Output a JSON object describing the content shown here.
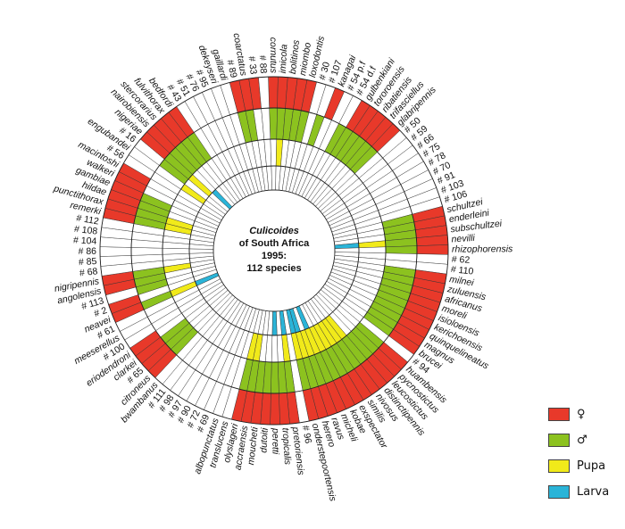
{
  "chart_data": {
    "type": "radial-matrix",
    "title_lines": [
      "Culicoides",
      "of South Africa",
      "1995:",
      "112 species"
    ],
    "rings": [
      "female",
      "male",
      "pupa",
      "larva"
    ],
    "colors": {
      "female": "#e8392a",
      "male": "#8cc21f",
      "pupa": "#f1ea1a",
      "larva": "#2ab4d8"
    },
    "legend": [
      {
        "key": "female",
        "label": "♀"
      },
      {
        "key": "male",
        "label": "♂"
      },
      {
        "key": "pupa",
        "label": "Pupa"
      },
      {
        "key": "larva",
        "label": "Larva"
      }
    ],
    "species": [
      {
        "name": "cornutus",
        "f": 1,
        "m": 1,
        "p": 0,
        "l": 0
      },
      {
        "name": "imicola",
        "f": 1,
        "m": 1,
        "p": 1,
        "l": 0
      },
      {
        "name": "bolitinos",
        "f": 1,
        "m": 1,
        "p": 0,
        "l": 0
      },
      {
        "name": "miombo",
        "f": 1,
        "m": 1,
        "p": 0,
        "l": 0
      },
      {
        "name": "loxodontis",
        "f": 1,
        "m": 1,
        "p": 0,
        "l": 0
      },
      {
        "name": "# 30",
        "f": 0,
        "m": 0,
        "p": 0,
        "l": 0
      },
      {
        "name": "# 107",
        "f": 0,
        "m": 1,
        "p": 0,
        "l": 0
      },
      {
        "name": "kanagai",
        "f": 1,
        "m": 0,
        "p": 0,
        "l": 0
      },
      {
        "name": "# 54 p.f",
        "f": 0,
        "m": 0,
        "p": 0,
        "l": 0
      },
      {
        "name": "# 54 d.f",
        "f": 0,
        "m": 1,
        "p": 0,
        "l": 0
      },
      {
        "name": "gulbenkiani",
        "f": 1,
        "m": 1,
        "p": 0,
        "l": 0
      },
      {
        "name": "tororoensis",
        "f": 1,
        "m": 1,
        "p": 0,
        "l": 0
      },
      {
        "name": "ribatiensis",
        "f": 1,
        "m": 1,
        "p": 0,
        "l": 0
      },
      {
        "name": "trifasciellus",
        "f": 1,
        "m": 1,
        "p": 0,
        "l": 0
      },
      {
        "name": "glabripennis",
        "f": 1,
        "m": 1,
        "p": 0,
        "l": 0
      },
      {
        "name": "# 50",
        "f": 0,
        "m": 0,
        "p": 0,
        "l": 0
      },
      {
        "name": "# 59",
        "f": 0,
        "m": 0,
        "p": 0,
        "l": 0
      },
      {
        "name": "# 66",
        "f": 0,
        "m": 0,
        "p": 0,
        "l": 0
      },
      {
        "name": "# 75",
        "f": 0,
        "m": 0,
        "p": 0,
        "l": 0
      },
      {
        "name": "# 78",
        "f": 0,
        "m": 0,
        "p": 0,
        "l": 0
      },
      {
        "name": "# 70",
        "f": 0,
        "m": 0,
        "p": 0,
        "l": 0
      },
      {
        "name": "# 91",
        "f": 0,
        "m": 0,
        "p": 0,
        "l": 0
      },
      {
        "name": "# 103",
        "f": 0,
        "m": 0,
        "p": 0,
        "l": 0
      },
      {
        "name": "# 106",
        "f": 0,
        "m": 0,
        "p": 0,
        "l": 0
      },
      {
        "name": "schultzei",
        "f": 1,
        "m": 1,
        "p": 0,
        "l": 0
      },
      {
        "name": "enderleini",
        "f": 1,
        "m": 1,
        "p": 0,
        "l": 0
      },
      {
        "name": "subschultzei",
        "f": 1,
        "m": 1,
        "p": 0,
        "l": 0
      },
      {
        "name": "nevilli",
        "f": 1,
        "m": 1,
        "p": 1,
        "l": 1
      },
      {
        "name": "rhizophorensis",
        "f": 1,
        "m": 1,
        "p": 0,
        "l": 0
      },
      {
        "name": "# 62",
        "f": 0,
        "m": 0,
        "p": 0,
        "l": 0
      },
      {
        "name": "# 110",
        "f": 0,
        "m": 0,
        "p": 0,
        "l": 0
      },
      {
        "name": "milnei",
        "f": 1,
        "m": 1,
        "p": 0,
        "l": 0
      },
      {
        "name": "zuluensis",
        "f": 1,
        "m": 1,
        "p": 0,
        "l": 0
      },
      {
        "name": "africanus",
        "f": 1,
        "m": 1,
        "p": 0,
        "l": 0
      },
      {
        "name": "moreli",
        "f": 1,
        "m": 1,
        "p": 0,
        "l": 0
      },
      {
        "name": "isioloensis",
        "f": 1,
        "m": 1,
        "p": 0,
        "l": 0
      },
      {
        "name": "kerichoensis",
        "f": 1,
        "m": 1,
        "p": 0,
        "l": 0
      },
      {
        "name": "quinquelineatus",
        "f": 1,
        "m": 1,
        "p": 0,
        "l": 0
      },
      {
        "name": "magnus",
        "f": 1,
        "m": 1,
        "p": 0,
        "l": 0
      },
      {
        "name": "brucei",
        "f": 1,
        "m": 1,
        "p": 0,
        "l": 0
      },
      {
        "name": "# 94",
        "f": 0,
        "m": 0,
        "p": 0,
        "l": 0
      },
      {
        "name": "huambensis",
        "f": 1,
        "m": 1,
        "p": 0,
        "l": 0
      },
      {
        "name": "pycnostictus",
        "f": 1,
        "m": 1,
        "p": 0,
        "l": 0
      },
      {
        "name": "leucostictus",
        "f": 1,
        "m": 1,
        "p": 0,
        "l": 0
      },
      {
        "name": "distinctipennis",
        "f": 1,
        "m": 1,
        "p": 1,
        "l": 0
      },
      {
        "name": "nivosus",
        "f": 1,
        "m": 1,
        "p": 1,
        "l": 0
      },
      {
        "name": "similis",
        "f": 1,
        "m": 1,
        "p": 1,
        "l": 0
      },
      {
        "name": "exspectator",
        "f": 1,
        "m": 1,
        "p": 1,
        "l": 0
      },
      {
        "name": "kobae",
        "f": 1,
        "m": 1,
        "p": 1,
        "l": 0
      },
      {
        "name": "micheli",
        "f": 1,
        "m": 1,
        "p": 1,
        "l": 1
      },
      {
        "name": "ravus",
        "f": 1,
        "m": 1,
        "p": 1,
        "l": 0
      },
      {
        "name": "herero",
        "f": 1,
        "m": 1,
        "p": 1,
        "l": 1
      },
      {
        "name": "onderstepoortensis",
        "f": 1,
        "m": 1,
        "p": 1,
        "l": 1
      },
      {
        "name": "# 96",
        "f": 0,
        "m": 0,
        "p": 0,
        "l": 0
      },
      {
        "name": "pretoriensis",
        "f": 1,
        "m": 1,
        "p": 1,
        "l": 1
      },
      {
        "name": "tropicalis",
        "f": 1,
        "m": 1,
        "p": 0,
        "l": 0
      },
      {
        "name": "peretti",
        "f": 1,
        "m": 1,
        "p": 0,
        "l": 1
      },
      {
        "name": "dutoiti",
        "f": 1,
        "m": 1,
        "p": 0,
        "l": 0
      },
      {
        "name": "moucheti",
        "f": 1,
        "m": 1,
        "p": 0,
        "l": 0
      },
      {
        "name": "accraensis",
        "f": 1,
        "m": 1,
        "p": 1,
        "l": 0
      },
      {
        "name": "olyslageri",
        "f": 1,
        "m": 1,
        "p": 1,
        "l": 0
      },
      {
        "name": "translucens",
        "f": 0,
        "m": 0,
        "p": 0,
        "l": 0
      },
      {
        "name": "albopunctatus",
        "f": 0,
        "m": 0,
        "p": 0,
        "l": 0
      },
      {
        "name": "# 69",
        "f": 0,
        "m": 0,
        "p": 0,
        "l": 0
      },
      {
        "name": "# 72",
        "f": 0,
        "m": 0,
        "p": 0,
        "l": 0
      },
      {
        "name": "# 90",
        "f": 0,
        "m": 0,
        "p": 0,
        "l": 0
      },
      {
        "name": "# 97",
        "f": 0,
        "m": 0,
        "p": 0,
        "l": 0
      },
      {
        "name": "# 98",
        "f": 0,
        "m": 0,
        "p": 0,
        "l": 0
      },
      {
        "name": "# 111",
        "f": 0,
        "m": 0,
        "p": 0,
        "l": 0
      },
      {
        "name": "bwambanus",
        "f": 0,
        "m": 0,
        "p": 0,
        "l": 0
      },
      {
        "name": "citroneus",
        "f": 1,
        "m": 1,
        "p": 0,
        "l": 0
      },
      {
        "name": "# 65",
        "f": 1,
        "m": 1,
        "p": 0,
        "l": 0
      },
      {
        "name": "clarkei",
        "f": 1,
        "m": 1,
        "p": 0,
        "l": 0
      },
      {
        "name": "eriodendroni",
        "f": 1,
        "m": 0,
        "p": 0,
        "l": 0
      },
      {
        "name": "# 100",
        "f": 0,
        "m": 0,
        "p": 0,
        "l": 0
      },
      {
        "name": "meeserellus",
        "f": 0,
        "m": 0,
        "p": 0,
        "l": 0
      },
      {
        "name": "# 61",
        "f": 0,
        "m": 0,
        "p": 0,
        "l": 0
      },
      {
        "name": "neavei",
        "f": 1,
        "m": 1,
        "p": 1,
        "l": 1
      },
      {
        "name": "# 2",
        "f": 1,
        "m": 0,
        "p": 0,
        "l": 0
      },
      {
        "name": "# 113",
        "f": 0,
        "m": 1,
        "p": 0,
        "l": 0
      },
      {
        "name": "angolensis",
        "f": 1,
        "m": 1,
        "p": 0,
        "l": 0
      },
      {
        "name": "nigripennis",
        "f": 1,
        "m": 1,
        "p": 1,
        "l": 0
      },
      {
        "name": "# 68",
        "f": 0,
        "m": 0,
        "p": 0,
        "l": 0
      },
      {
        "name": "# 85",
        "f": 0,
        "m": 0,
        "p": 0,
        "l": 0
      },
      {
        "name": "# 86",
        "f": 0,
        "m": 0,
        "p": 0,
        "l": 0
      },
      {
        "name": "# 104",
        "f": 0,
        "m": 0,
        "p": 0,
        "l": 0
      },
      {
        "name": "# 108",
        "f": 0,
        "m": 0,
        "p": 0,
        "l": 0
      },
      {
        "name": "# 112",
        "f": 0,
        "m": 0,
        "p": 0,
        "l": 0
      },
      {
        "name": "remerki",
        "f": 1,
        "m": 1,
        "p": 1,
        "l": 0
      },
      {
        "name": "punctithorax",
        "f": 1,
        "m": 1,
        "p": 1,
        "l": 0
      },
      {
        "name": "hildae",
        "f": 1,
        "m": 1,
        "p": 0,
        "l": 0
      },
      {
        "name": "gambiae",
        "f": 1,
        "m": 1,
        "p": 0,
        "l": 0
      },
      {
        "name": "walkeri",
        "f": 1,
        "m": 0,
        "p": 0,
        "l": 0
      },
      {
        "name": "macintoshi",
        "f": 1,
        "m": 0,
        "p": 0,
        "l": 0
      },
      {
        "name": "# 56",
        "f": 0,
        "m": 0,
        "p": 0,
        "l": 0
      },
      {
        "name": "engubandei",
        "f": 0,
        "m": 0,
        "p": 1,
        "l": 0
      },
      {
        "name": "# 16",
        "f": 0,
        "m": 1,
        "p": 0,
        "l": 0
      },
      {
        "name": "nigeriae",
        "f": 1,
        "m": 1,
        "p": 1,
        "l": 0
      },
      {
        "name": "nairobiensis",
        "f": 1,
        "m": 1,
        "p": 0,
        "l": 1
      },
      {
        "name": "stercorarius",
        "f": 1,
        "m": 1,
        "p": 0,
        "l": 0
      },
      {
        "name": "fulvithorax",
        "f": 1,
        "m": 1,
        "p": 0,
        "l": 0
      },
      {
        "name": "bedfordi",
        "f": 1,
        "m": 1,
        "p": 0,
        "l": 0
      },
      {
        "name": "# 43",
        "f": 0,
        "m": 0,
        "p": 0,
        "l": 0
      },
      {
        "name": "# 51",
        "f": 0,
        "m": 0,
        "p": 0,
        "l": 0
      },
      {
        "name": "# 76",
        "f": 0,
        "m": 0,
        "p": 0,
        "l": 0
      },
      {
        "name": "# 95",
        "f": 0,
        "m": 0,
        "p": 0,
        "l": 0
      },
      {
        "name": "dekeyseri",
        "f": 0,
        "m": 0,
        "p": 0,
        "l": 0
      },
      {
        "name": "gaillardi",
        "f": 0,
        "m": 0,
        "p": 0,
        "l": 0
      },
      {
        "name": "# 89",
        "f": 1,
        "m": 1,
        "p": 0,
        "l": 0
      },
      {
        "name": "coarctatus",
        "f": 1,
        "m": 1,
        "p": 0,
        "l": 0
      },
      {
        "name": "# 33",
        "f": 1,
        "m": 0,
        "p": 0,
        "l": 0
      },
      {
        "name": "# 88",
        "f": 0,
        "m": 0,
        "p": 0,
        "l": 0
      }
    ]
  }
}
